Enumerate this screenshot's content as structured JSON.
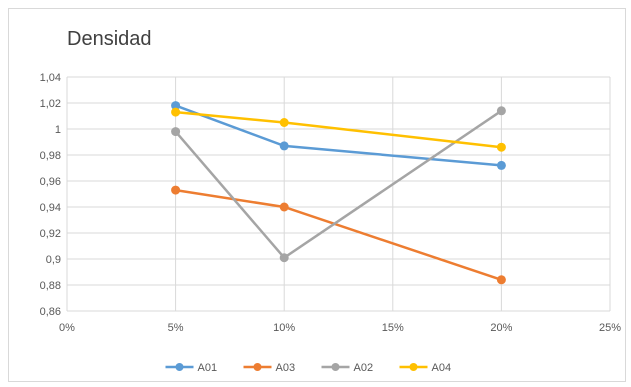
{
  "chart_data": {
    "type": "line",
    "title": "Densidad",
    "xlabel": "",
    "ylabel": "",
    "x": [
      0.05,
      0.1,
      0.2
    ],
    "xlim": [
      0,
      0.25
    ],
    "ylim": [
      0.86,
      1.04
    ],
    "x_ticks": [
      "0%",
      "5%",
      "10%",
      "15%",
      "20%",
      "25%"
    ],
    "y_ticks": [
      "0,86",
      "0,88",
      "0,9",
      "0,92",
      "0,94",
      "0,96",
      "0,98",
      "1",
      "1,02",
      "1,04"
    ],
    "grid": true,
    "legend_position": "bottom",
    "series": [
      {
        "name": "A01",
        "color": "#5b9bd5",
        "values": [
          1.018,
          0.987,
          0.972
        ]
      },
      {
        "name": "A03",
        "color": "#ed7d31",
        "values": [
          0.953,
          0.94,
          0.884
        ]
      },
      {
        "name": "A02",
        "color": "#a5a5a5",
        "values": [
          0.998,
          0.901,
          1.014
        ]
      },
      {
        "name": "A04",
        "color": "#ffc000",
        "values": [
          1.013,
          1.005,
          0.986
        ]
      }
    ]
  }
}
